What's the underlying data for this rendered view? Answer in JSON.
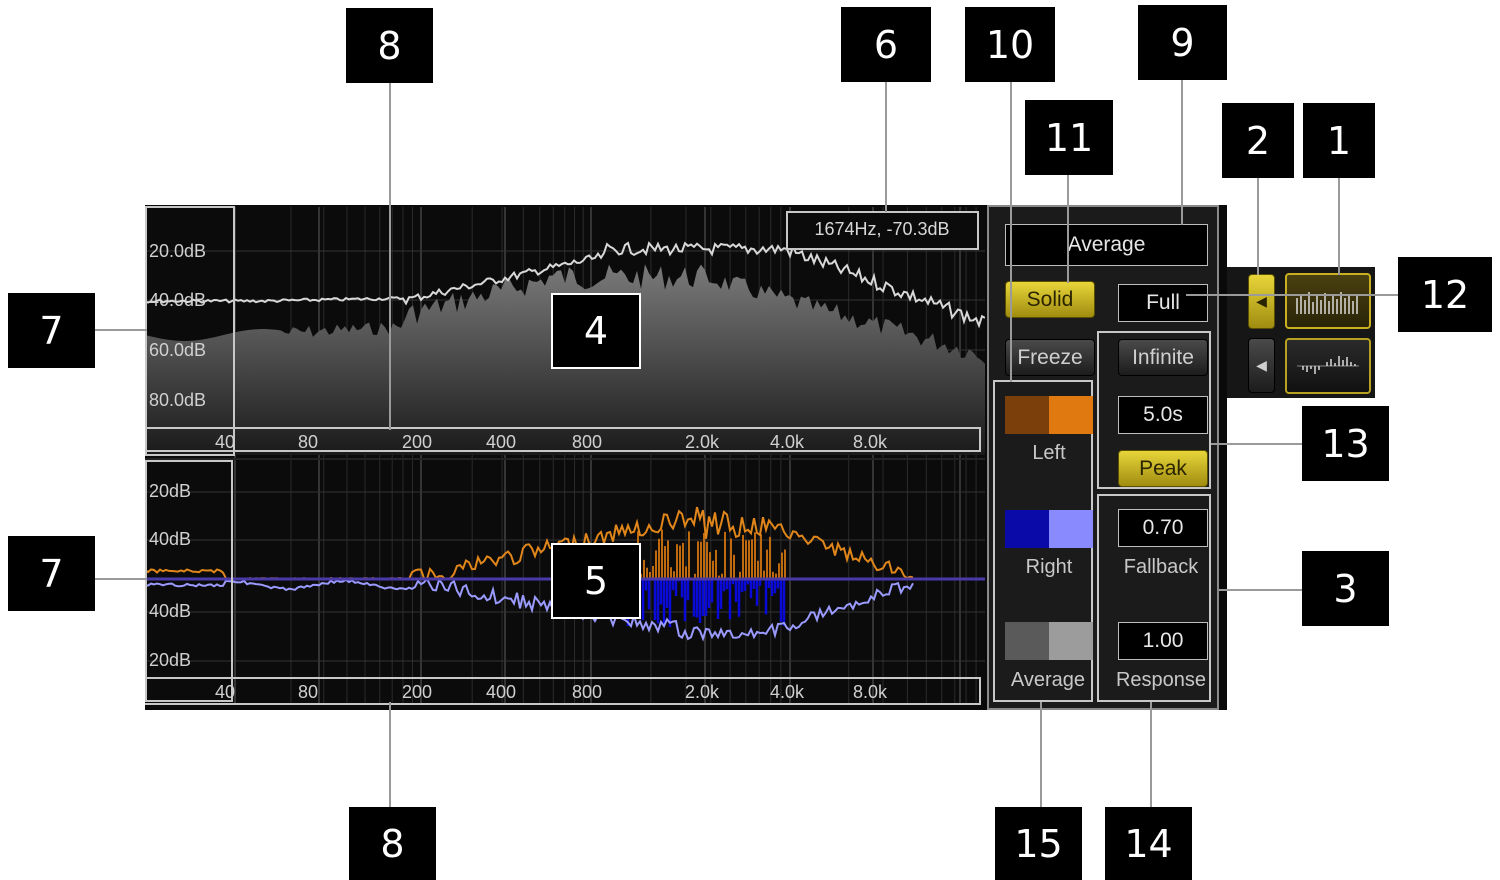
{
  "readout": "1674Hz, -70.3dB",
  "upper_db_labels": [
    "20.0dB",
    "40.0dB",
    "60.0dB",
    "80.0dB"
  ],
  "lower_db_labels": [
    "20dB",
    "40dB",
    "40dB",
    "20dB"
  ],
  "freq_labels": [
    "40",
    "80",
    "200",
    "400",
    "800",
    "2.0k",
    "4.0k",
    "8.0k"
  ],
  "controls": {
    "mode_select": "Average",
    "solid_button": "Solid",
    "freeze_button": "Freeze",
    "range_field": "Full",
    "infinite_button": "Infinite",
    "hold_time": "5.0s",
    "peak_button": "Peak",
    "fallback_value": "0.70",
    "fallback_label": "Fallback",
    "response_value": "1.00",
    "response_label": "Response"
  },
  "color_pickers": {
    "left_label": "Left",
    "right_label": "Right",
    "average_label": "Average",
    "left_colors": [
      "#7a3f0a",
      "#e07a10"
    ],
    "right_colors": [
      "#0a0aa8",
      "#8a8aff"
    ],
    "average_colors": [
      "#5a5a5a",
      "#9c9c9c"
    ]
  },
  "view_buttons": {
    "spectrum_icon": "spectrum-bars-icon",
    "stereo_icon": "stereo-difference-icon",
    "arrow_icon": "triangle-left-icon"
  },
  "callouts": [
    "8",
    "6",
    "10",
    "9",
    "11",
    "2",
    "1",
    "12",
    "7",
    "4",
    "13",
    "7",
    "5",
    "3",
    "8",
    "15",
    "14"
  ]
}
